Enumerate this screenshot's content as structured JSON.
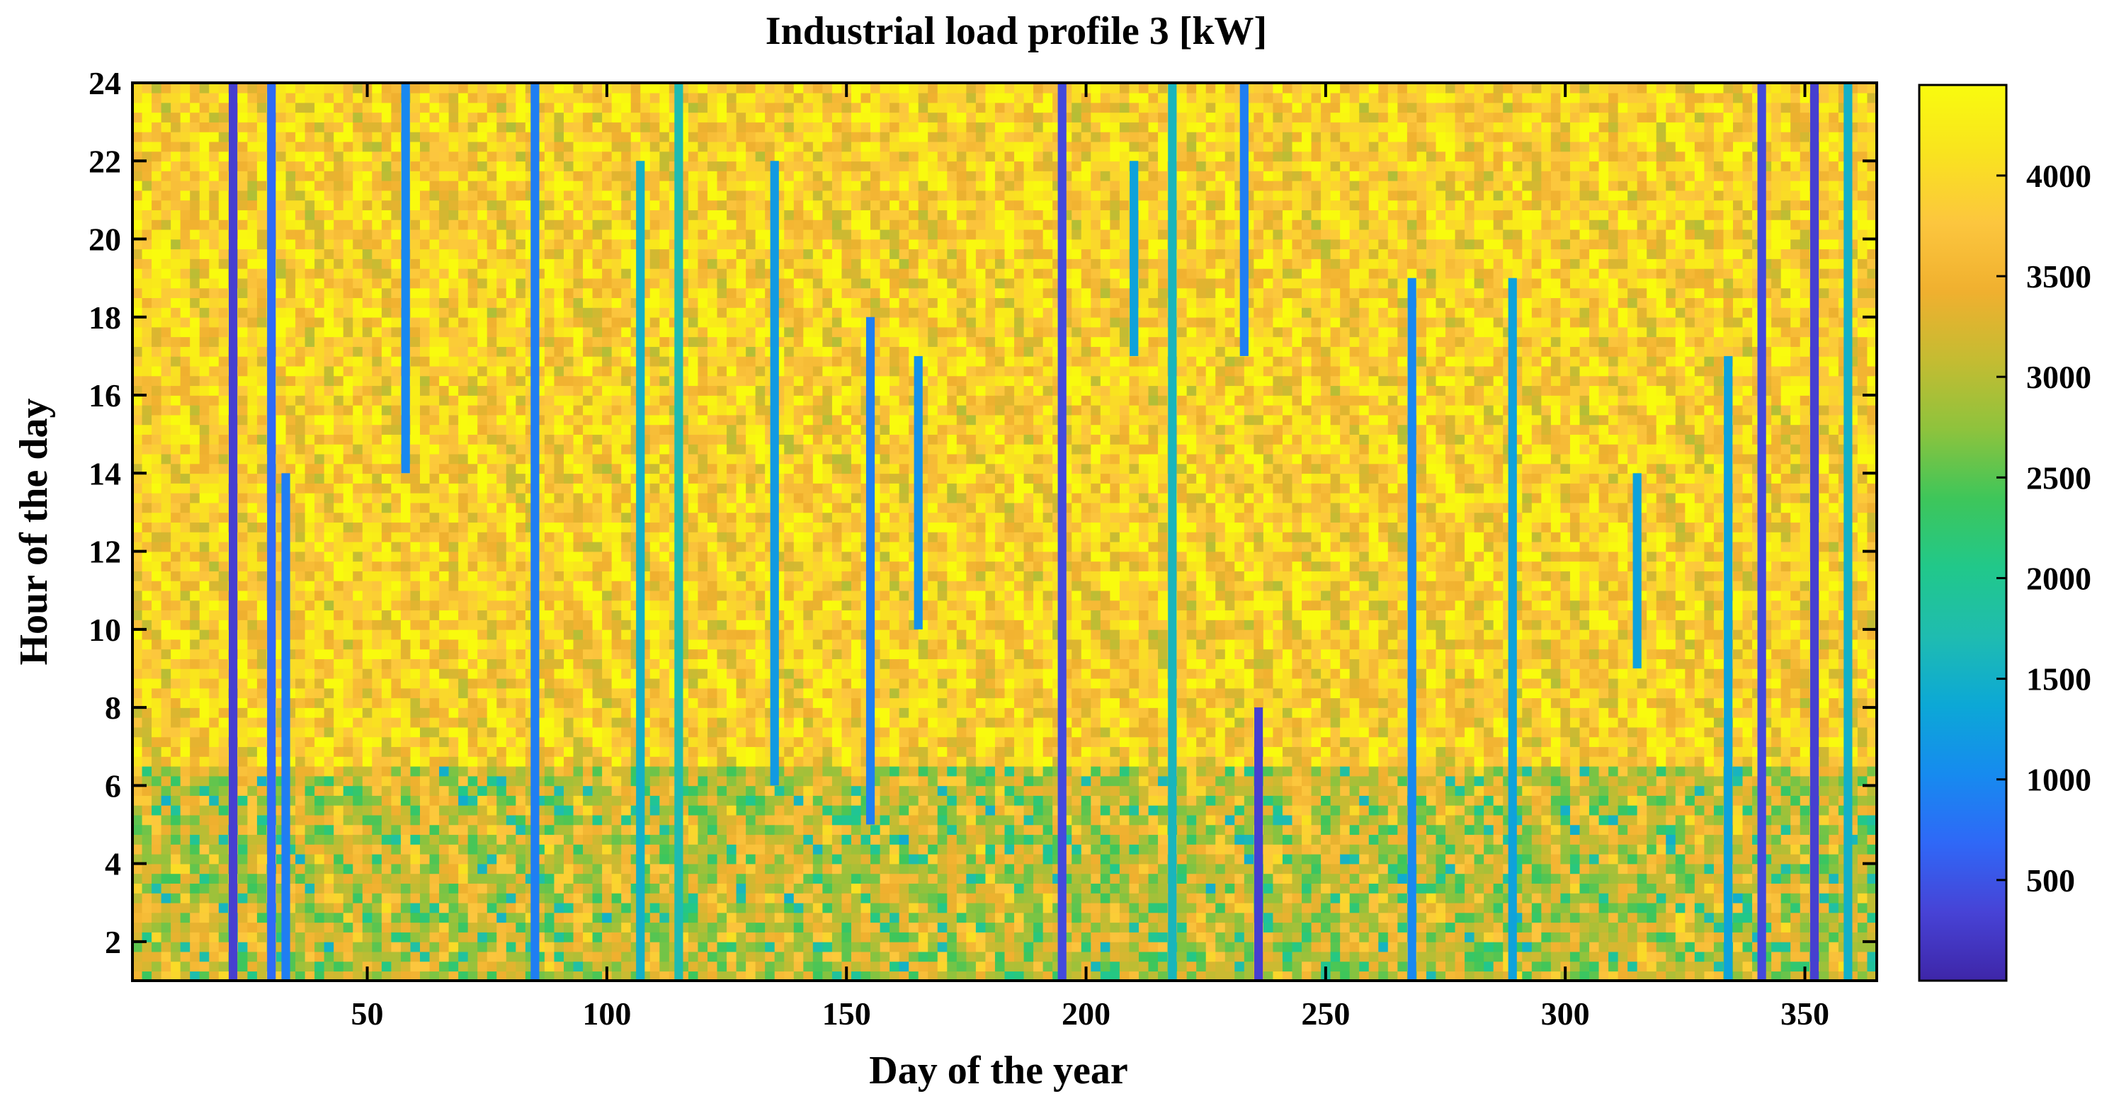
{
  "chart_data": {
    "type": "heatmap",
    "title": "Industrial load profile 3 [kW]",
    "xlabel": "Day of the year",
    "ylabel": "Hour of the day",
    "xlim": [
      1,
      365
    ],
    "ylim": [
      1,
      24
    ],
    "x_ticks": [
      50,
      100,
      150,
      200,
      250,
      300,
      350
    ],
    "y_ticks": [
      2,
      4,
      6,
      8,
      10,
      12,
      14,
      16,
      18,
      20,
      22,
      24
    ],
    "colorbar": {
      "range": [
        0,
        4450
      ],
      "ticks": [
        500,
        1000,
        1500,
        2000,
        2500,
        3000,
        3500,
        4000
      ],
      "colormap": [
        "#3e26a8",
        "#4743d6",
        "#2f68f7",
        "#168bef",
        "#0ca8d6",
        "#1fbcb0",
        "#21c88a",
        "#3ec65a",
        "#8ec33d",
        "#c4bc32",
        "#f0b02f",
        "#fcc63e",
        "#f9e31f",
        "#f9fb0e"
      ]
    },
    "base_load_kW": {
      "night_hours_1_6": 3200,
      "day_hours_7_24": 3850
    },
    "low_load_days": [
      {
        "day": 22,
        "hours": [
          1,
          24
        ],
        "value_kW": 300
      },
      {
        "day": 30,
        "hours": [
          1,
          24
        ],
        "value_kW": 700
      },
      {
        "day": 33,
        "hours": [
          1,
          14
        ],
        "value_kW": 900
      },
      {
        "day": 58,
        "hours": [
          14,
          24
        ],
        "value_kW": 1000
      },
      {
        "day": 85,
        "hours": [
          1,
          24
        ],
        "value_kW": 900
      },
      {
        "day": 107,
        "hours": [
          1,
          22
        ],
        "value_kW": 1500
      },
      {
        "day": 115,
        "hours": [
          1,
          24
        ],
        "value_kW": 1700
      },
      {
        "day": 135,
        "hours": [
          6,
          22
        ],
        "value_kW": 1200
      },
      {
        "day": 155,
        "hours": [
          5,
          18
        ],
        "value_kW": 900
      },
      {
        "day": 165,
        "hours": [
          10,
          17
        ],
        "value_kW": 1100
      },
      {
        "day": 195,
        "hours": [
          1,
          24
        ],
        "value_kW": 400
      },
      {
        "day": 210,
        "hours": [
          17,
          22
        ],
        "value_kW": 1300
      },
      {
        "day": 218,
        "hours": [
          1,
          24
        ],
        "value_kW": 1600
      },
      {
        "day": 233,
        "hours": [
          17,
          24
        ],
        "value_kW": 900
      },
      {
        "day": 236,
        "hours": [
          1,
          8
        ],
        "value_kW": 300
      },
      {
        "day": 268,
        "hours": [
          1,
          19
        ],
        "value_kW": 1000
      },
      {
        "day": 289,
        "hours": [
          1,
          19
        ],
        "value_kW": 1300
      },
      {
        "day": 315,
        "hours": [
          9,
          14
        ],
        "value_kW": 1300
      },
      {
        "day": 334,
        "hours": [
          1,
          17
        ],
        "value_kW": 1300
      },
      {
        "day": 341,
        "hours": [
          1,
          24
        ],
        "value_kW": 400
      },
      {
        "day": 352,
        "hours": [
          1,
          24
        ],
        "value_kW": 300
      },
      {
        "day": 359,
        "hours": [
          1,
          24
        ],
        "value_kW": 1500
      }
    ]
  }
}
